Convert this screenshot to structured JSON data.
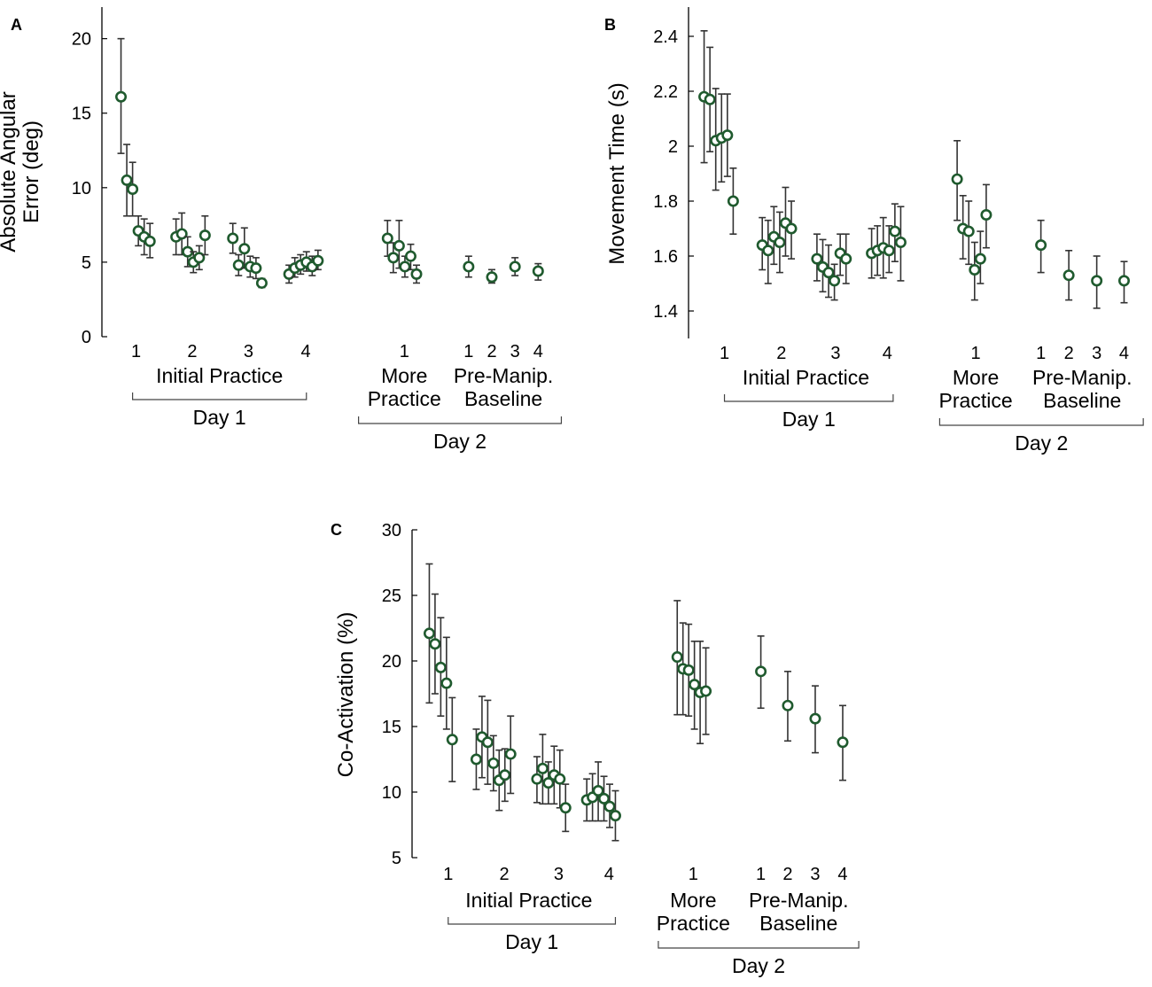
{
  "figure": {
    "marker_color": "#1f5a2e",
    "errorbar_color": "#333333",
    "axis_color": "#000000"
  },
  "chart_data": [
    {
      "type": "scatter",
      "panel": "A",
      "title": "",
      "ylabel": "Absolute Angular Error (deg)",
      "ylabel_lines": [
        "Absolute Angular",
        "Error (deg)"
      ],
      "ylim": [
        0,
        22
      ],
      "yticks": [
        0,
        5,
        10,
        15,
        20
      ],
      "ytick_labels": [
        "0",
        "5",
        "10",
        "15",
        "20"
      ],
      "xticks": [
        {
          "label": "1",
          "x": 2.6
        },
        {
          "label": "2",
          "x": 12.3
        },
        {
          "label": "3",
          "x": 22.0
        },
        {
          "label": "4",
          "x": 31.9
        },
        {
          "label": "1",
          "x": 48.9
        },
        {
          "label": "1",
          "x": 60.0
        },
        {
          "label": "2",
          "x": 64.0
        },
        {
          "label": "3",
          "x": 68.0
        },
        {
          "label": "4",
          "x": 72.0
        }
      ],
      "groups": [
        {
          "label": "Initial Practice",
          "x": 17.0
        },
        {
          "label": "More Practice",
          "x": 48.9
        },
        {
          "label": "Pre-Manip. Baseline",
          "x": 66.0
        }
      ],
      "sessions": [
        {
          "label": "Day 1",
          "x_range": [
            2.0,
            32.0
          ]
        },
        {
          "label": "Day 2",
          "x_range": [
            41.0,
            76.0
          ]
        }
      ],
      "xlim": [
        -1,
        77
      ],
      "points": [
        {
          "x": 0.0,
          "y": 16.1,
          "lo": 12.3,
          "hi": 20.0
        },
        {
          "x": 1.0,
          "y": 10.5,
          "lo": 8.1,
          "hi": 12.9
        },
        {
          "x": 2.0,
          "y": 9.9,
          "lo": 8.1,
          "hi": 11.7
        },
        {
          "x": 3.0,
          "y": 7.1,
          "lo": 6.1,
          "hi": 8.1
        },
        {
          "x": 4.0,
          "y": 6.7,
          "lo": 5.5,
          "hi": 7.9
        },
        {
          "x": 5.0,
          "y": 6.4,
          "lo": 5.3,
          "hi": 7.6
        },
        {
          "x": 9.5,
          "y": 6.7,
          "lo": 5.5,
          "hi": 7.9
        },
        {
          "x": 10.5,
          "y": 6.9,
          "lo": 5.5,
          "hi": 8.3
        },
        {
          "x": 11.5,
          "y": 5.7,
          "lo": 4.7,
          "hi": 6.7
        },
        {
          "x": 12.5,
          "y": 5.0,
          "lo": 4.3,
          "hi": 5.7
        },
        {
          "x": 13.5,
          "y": 5.3,
          "lo": 4.5,
          "hi": 6.1
        },
        {
          "x": 14.5,
          "y": 6.8,
          "lo": 5.5,
          "hi": 8.1
        },
        {
          "x": 19.3,
          "y": 6.6,
          "lo": 5.6,
          "hi": 7.6
        },
        {
          "x": 20.3,
          "y": 4.8,
          "lo": 4.1,
          "hi": 5.5
        },
        {
          "x": 21.3,
          "y": 5.9,
          "lo": 4.6,
          "hi": 7.3
        },
        {
          "x": 22.3,
          "y": 4.7,
          "lo": 4.0,
          "hi": 5.4
        },
        {
          "x": 23.3,
          "y": 4.6,
          "lo": 3.9,
          "hi": 5.3
        },
        {
          "x": 24.3,
          "y": 3.6,
          "lo": 3.3,
          "hi": 3.9
        },
        {
          "x": 29.0,
          "y": 4.2,
          "lo": 3.6,
          "hi": 4.8
        },
        {
          "x": 30.0,
          "y": 4.6,
          "lo": 4.0,
          "hi": 5.3
        },
        {
          "x": 31.0,
          "y": 4.8,
          "lo": 4.2,
          "hi": 5.5
        },
        {
          "x": 32.0,
          "y": 5.0,
          "lo": 4.4,
          "hi": 5.7
        },
        {
          "x": 33.0,
          "y": 4.7,
          "lo": 4.1,
          "hi": 5.4
        },
        {
          "x": 34.0,
          "y": 5.1,
          "lo": 4.5,
          "hi": 5.8
        },
        {
          "x": 46.0,
          "y": 6.6,
          "lo": 5.4,
          "hi": 7.8
        },
        {
          "x": 47.0,
          "y": 5.3,
          "lo": 4.3,
          "hi": 6.3
        },
        {
          "x": 48.0,
          "y": 6.1,
          "lo": 4.6,
          "hi": 7.8
        },
        {
          "x": 49.0,
          "y": 4.7,
          "lo": 4.0,
          "hi": 5.4
        },
        {
          "x": 50.0,
          "y": 5.4,
          "lo": 4.5,
          "hi": 6.2
        },
        {
          "x": 51.0,
          "y": 4.2,
          "lo": 3.6,
          "hi": 4.8
        },
        {
          "x": 60.0,
          "y": 4.7,
          "lo": 4.0,
          "hi": 5.4
        },
        {
          "x": 64.0,
          "y": 4.0,
          "lo": 3.6,
          "hi": 4.5
        },
        {
          "x": 68.0,
          "y": 4.7,
          "lo": 4.1,
          "hi": 5.3
        },
        {
          "x": 72.0,
          "y": 4.4,
          "lo": 3.8,
          "hi": 4.9
        }
      ]
    },
    {
      "type": "scatter",
      "panel": "B",
      "title": "",
      "ylabel": "Movement Time (s)",
      "ylabel_lines": [
        "Movement Time (s)"
      ],
      "ylim": [
        1.3,
        2.5
      ],
      "yticks": [
        1.4,
        1.6,
        1.8,
        2.0,
        2.2,
        2.4
      ],
      "ytick_labels": [
        "1.4",
        "1.6",
        "1.8",
        "2",
        "2.2",
        "2.4"
      ],
      "xticks": [
        {
          "label": "1",
          "x": 3.5
        },
        {
          "label": "2",
          "x": 13.3
        },
        {
          "label": "3",
          "x": 22.6
        },
        {
          "label": "4",
          "x": 31.5
        },
        {
          "label": "1",
          "x": 46.7
        },
        {
          "label": "1",
          "x": 57.9
        },
        {
          "label": "2",
          "x": 62.7
        },
        {
          "label": "3",
          "x": 67.5
        },
        {
          "label": "4",
          "x": 72.2
        }
      ],
      "groups": [
        {
          "label": "Initial Practice",
          "x": 17.5
        },
        {
          "label": "More Practice",
          "x": 46.7
        },
        {
          "label": "Pre-Manip. Baseline",
          "x": 65.0
        }
      ],
      "sessions": [
        {
          "label": "Day 1",
          "x_range": [
            3.5,
            32.5
          ]
        },
        {
          "label": "Day 2",
          "x_range": [
            40.5,
            75.5
          ]
        }
      ],
      "xlim": [
        -1,
        77
      ],
      "points": [
        {
          "x": 0.0,
          "y": 2.18,
          "lo": 1.94,
          "hi": 2.42
        },
        {
          "x": 1.0,
          "y": 2.17,
          "lo": 1.98,
          "hi": 2.36
        },
        {
          "x": 2.0,
          "y": 2.02,
          "lo": 1.84,
          "hi": 2.21
        },
        {
          "x": 3.0,
          "y": 2.03,
          "lo": 1.87,
          "hi": 2.19
        },
        {
          "x": 4.0,
          "y": 2.04,
          "lo": 1.89,
          "hi": 2.19
        },
        {
          "x": 5.0,
          "y": 1.8,
          "lo": 1.68,
          "hi": 1.92
        },
        {
          "x": 10.0,
          "y": 1.64,
          "lo": 1.55,
          "hi": 1.74
        },
        {
          "x": 11.0,
          "y": 1.62,
          "lo": 1.5,
          "hi": 1.73
        },
        {
          "x": 12.0,
          "y": 1.67,
          "lo": 1.57,
          "hi": 1.78
        },
        {
          "x": 13.0,
          "y": 1.65,
          "lo": 1.54,
          "hi": 1.76
        },
        {
          "x": 14.0,
          "y": 1.72,
          "lo": 1.6,
          "hi": 1.85
        },
        {
          "x": 15.0,
          "y": 1.7,
          "lo": 1.59,
          "hi": 1.8
        },
        {
          "x": 19.4,
          "y": 1.59,
          "lo": 1.51,
          "hi": 1.68
        },
        {
          "x": 20.4,
          "y": 1.56,
          "lo": 1.47,
          "hi": 1.66
        },
        {
          "x": 21.4,
          "y": 1.54,
          "lo": 1.45,
          "hi": 1.64
        },
        {
          "x": 22.4,
          "y": 1.51,
          "lo": 1.44,
          "hi": 1.57
        },
        {
          "x": 23.4,
          "y": 1.61,
          "lo": 1.53,
          "hi": 1.68
        },
        {
          "x": 24.4,
          "y": 1.59,
          "lo": 1.5,
          "hi": 1.68
        },
        {
          "x": 28.8,
          "y": 1.61,
          "lo": 1.52,
          "hi": 1.7
        },
        {
          "x": 29.8,
          "y": 1.62,
          "lo": 1.53,
          "hi": 1.71
        },
        {
          "x": 30.8,
          "y": 1.63,
          "lo": 1.52,
          "hi": 1.74
        },
        {
          "x": 31.8,
          "y": 1.62,
          "lo": 1.54,
          "hi": 1.71
        },
        {
          "x": 32.8,
          "y": 1.69,
          "lo": 1.58,
          "hi": 1.79
        },
        {
          "x": 33.8,
          "y": 1.65,
          "lo": 1.51,
          "hi": 1.78
        },
        {
          "x": 43.5,
          "y": 1.88,
          "lo": 1.73,
          "hi": 2.02
        },
        {
          "x": 44.5,
          "y": 1.7,
          "lo": 1.59,
          "hi": 1.82
        },
        {
          "x": 45.5,
          "y": 1.69,
          "lo": 1.57,
          "hi": 1.8
        },
        {
          "x": 46.5,
          "y": 1.55,
          "lo": 1.44,
          "hi": 1.65
        },
        {
          "x": 47.5,
          "y": 1.59,
          "lo": 1.5,
          "hi": 1.69
        },
        {
          "x": 48.5,
          "y": 1.75,
          "lo": 1.63,
          "hi": 1.86
        },
        {
          "x": 57.9,
          "y": 1.64,
          "lo": 1.54,
          "hi": 1.73
        },
        {
          "x": 62.7,
          "y": 1.53,
          "lo": 1.44,
          "hi": 1.62
        },
        {
          "x": 67.5,
          "y": 1.51,
          "lo": 1.41,
          "hi": 1.6
        },
        {
          "x": 72.2,
          "y": 1.51,
          "lo": 1.43,
          "hi": 1.58
        }
      ]
    },
    {
      "type": "scatter",
      "panel": "C",
      "title": "",
      "ylabel": "Co-Activation (%)",
      "ylabel_lines": [
        "Co-Activation (%)"
      ],
      "ylim": [
        5,
        30
      ],
      "yticks": [
        5,
        10,
        15,
        20,
        25,
        30
      ],
      "ytick_labels": [
        "5",
        "10",
        "15",
        "20",
        "25",
        "30"
      ],
      "xticks": [
        {
          "label": "1",
          "x": 3.3
        },
        {
          "label": "2",
          "x": 13.1
        },
        {
          "label": "3",
          "x": 22.6
        },
        {
          "label": "4",
          "x": 31.4
        },
        {
          "label": "1",
          "x": 46.1
        },
        {
          "label": "1",
          "x": 57.9
        },
        {
          "label": "2",
          "x": 62.6
        },
        {
          "label": "3",
          "x": 67.4
        },
        {
          "label": "4",
          "x": 72.2
        }
      ],
      "groups": [
        {
          "label": "Initial Practice",
          "x": 17.4
        },
        {
          "label": "More Practice",
          "x": 46.1
        },
        {
          "label": "Pre-Manip. Baseline",
          "x": 64.5
        }
      ],
      "sessions": [
        {
          "label": "Day 1",
          "x_range": [
            3.3,
            32.5
          ]
        },
        {
          "label": "Day 2",
          "x_range": [
            40.0,
            75.0
          ]
        }
      ],
      "xlim": [
        -1,
        77
      ],
      "points": [
        {
          "x": 0.0,
          "y": 22.1,
          "lo": 16.8,
          "hi": 27.4
        },
        {
          "x": 1.0,
          "y": 21.3,
          "lo": 17.5,
          "hi": 25.1
        },
        {
          "x": 2.0,
          "y": 19.5,
          "lo": 15.8,
          "hi": 23.3
        },
        {
          "x": 3.0,
          "y": 18.3,
          "lo": 14.8,
          "hi": 21.8
        },
        {
          "x": 4.0,
          "y": 14.0,
          "lo": 10.8,
          "hi": 17.2
        },
        {
          "x": 8.2,
          "y": 12.5,
          "lo": 10.2,
          "hi": 14.8
        },
        {
          "x": 9.2,
          "y": 14.2,
          "lo": 11.1,
          "hi": 17.3
        },
        {
          "x": 10.2,
          "y": 13.8,
          "lo": 10.6,
          "hi": 17.0
        },
        {
          "x": 11.2,
          "y": 12.2,
          "lo": 10.1,
          "hi": 14.3
        },
        {
          "x": 12.2,
          "y": 10.9,
          "lo": 8.6,
          "hi": 13.2
        },
        {
          "x": 13.2,
          "y": 11.3,
          "lo": 9.3,
          "hi": 13.3
        },
        {
          "x": 14.2,
          "y": 12.9,
          "lo": 9.9,
          "hi": 15.8
        },
        {
          "x": 18.8,
          "y": 11.0,
          "lo": 9.2,
          "hi": 12.7
        },
        {
          "x": 19.8,
          "y": 11.8,
          "lo": 9.1,
          "hi": 14.4
        },
        {
          "x": 20.8,
          "y": 10.7,
          "lo": 9.1,
          "hi": 12.3
        },
        {
          "x": 21.8,
          "y": 11.3,
          "lo": 9.1,
          "hi": 13.5
        },
        {
          "x": 22.8,
          "y": 11.0,
          "lo": 8.8,
          "hi": 13.2
        },
        {
          "x": 23.8,
          "y": 8.8,
          "lo": 7.0,
          "hi": 10.6
        },
        {
          "x": 27.5,
          "y": 9.4,
          "lo": 7.8,
          "hi": 11.0
        },
        {
          "x": 28.5,
          "y": 9.6,
          "lo": 7.8,
          "hi": 11.4
        },
        {
          "x": 29.5,
          "y": 10.1,
          "lo": 7.8,
          "hi": 12.3
        },
        {
          "x": 30.5,
          "y": 9.5,
          "lo": 7.8,
          "hi": 11.2
        },
        {
          "x": 31.5,
          "y": 8.9,
          "lo": 7.3,
          "hi": 10.6
        },
        {
          "x": 32.5,
          "y": 8.2,
          "lo": 6.3,
          "hi": 10.1
        },
        {
          "x": 43.3,
          "y": 20.3,
          "lo": 15.9,
          "hi": 24.6
        },
        {
          "x": 44.3,
          "y": 19.4,
          "lo": 15.9,
          "hi": 22.9
        },
        {
          "x": 45.3,
          "y": 19.3,
          "lo": 15.8,
          "hi": 22.8
        },
        {
          "x": 46.3,
          "y": 18.2,
          "lo": 14.8,
          "hi": 21.5
        },
        {
          "x": 47.3,
          "y": 17.6,
          "lo": 13.7,
          "hi": 21.5
        },
        {
          "x": 48.3,
          "y": 17.7,
          "lo": 14.4,
          "hi": 21.0
        },
        {
          "x": 57.9,
          "y": 19.2,
          "lo": 16.4,
          "hi": 21.9
        },
        {
          "x": 62.6,
          "y": 16.6,
          "lo": 13.9,
          "hi": 19.2
        },
        {
          "x": 67.4,
          "y": 15.6,
          "lo": 13.0,
          "hi": 18.1
        },
        {
          "x": 72.2,
          "y": 13.8,
          "lo": 10.9,
          "hi": 16.6
        }
      ]
    }
  ]
}
